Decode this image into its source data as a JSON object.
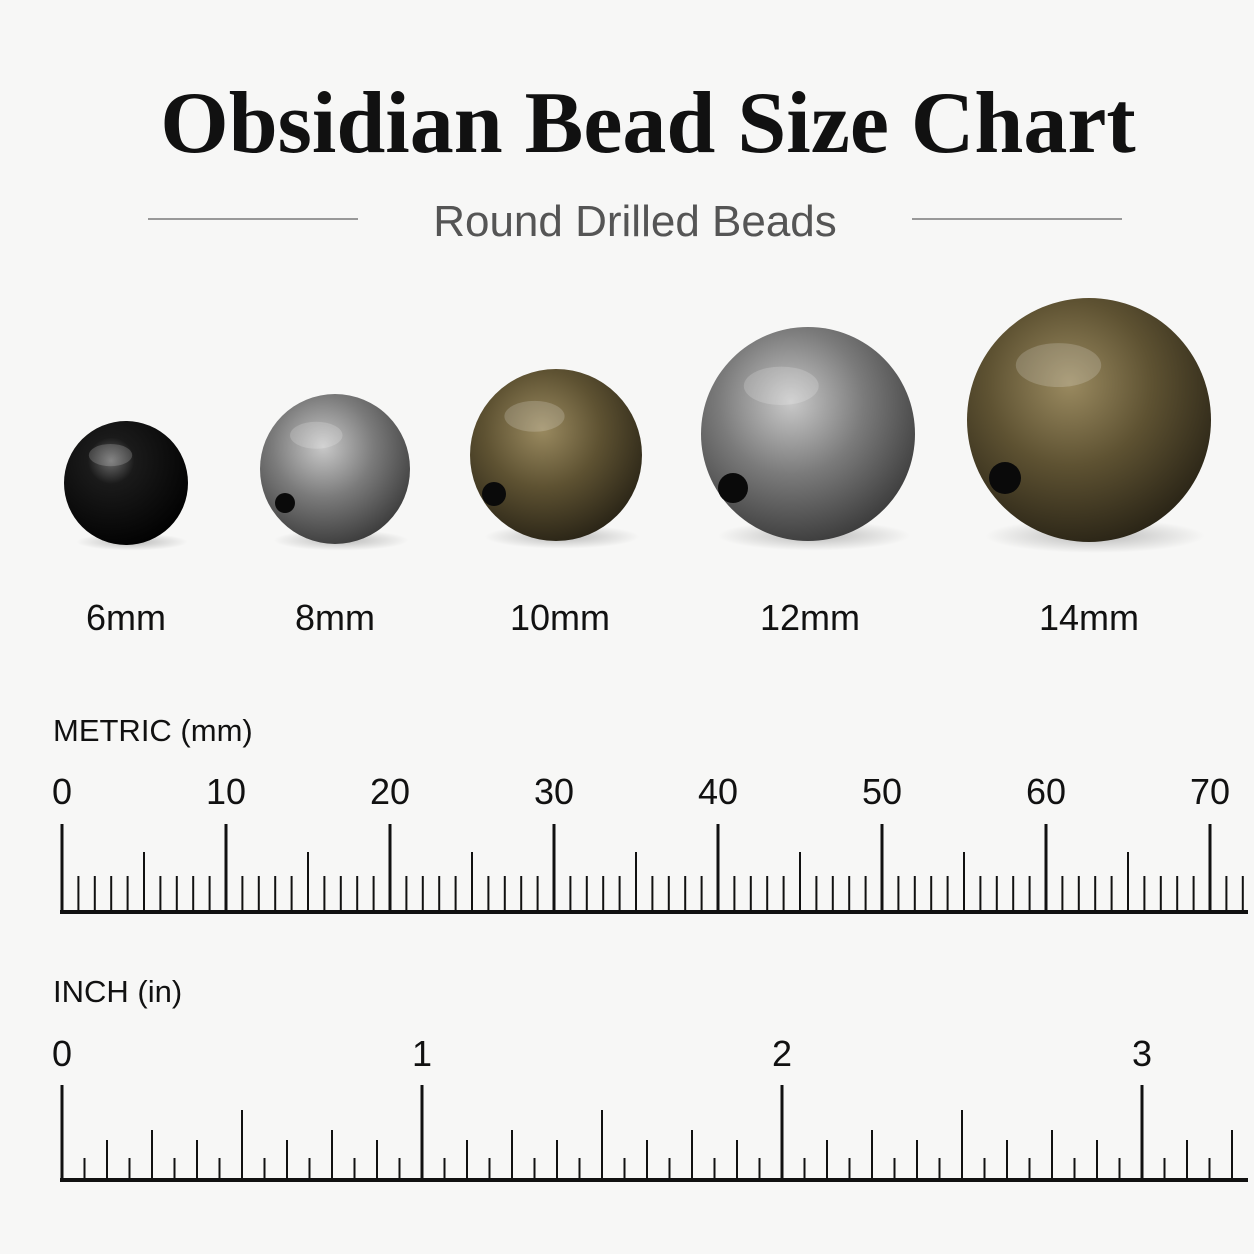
{
  "header": {
    "title": "Obsidian Bead Size Chart",
    "subtitle": "Round Drilled Beads"
  },
  "beads": [
    {
      "label": "6mm"
    },
    {
      "label": "8mm"
    },
    {
      "label": "10mm"
    },
    {
      "label": "12mm"
    },
    {
      "label": "14mm"
    }
  ],
  "rulers": [
    {
      "label": "METRIC (mm)",
      "ticks": [
        0,
        10,
        20,
        30,
        40,
        50,
        60,
        70
      ]
    },
    {
      "label": "INCH (in)",
      "ticks": [
        0,
        1,
        2,
        3
      ]
    }
  ]
}
